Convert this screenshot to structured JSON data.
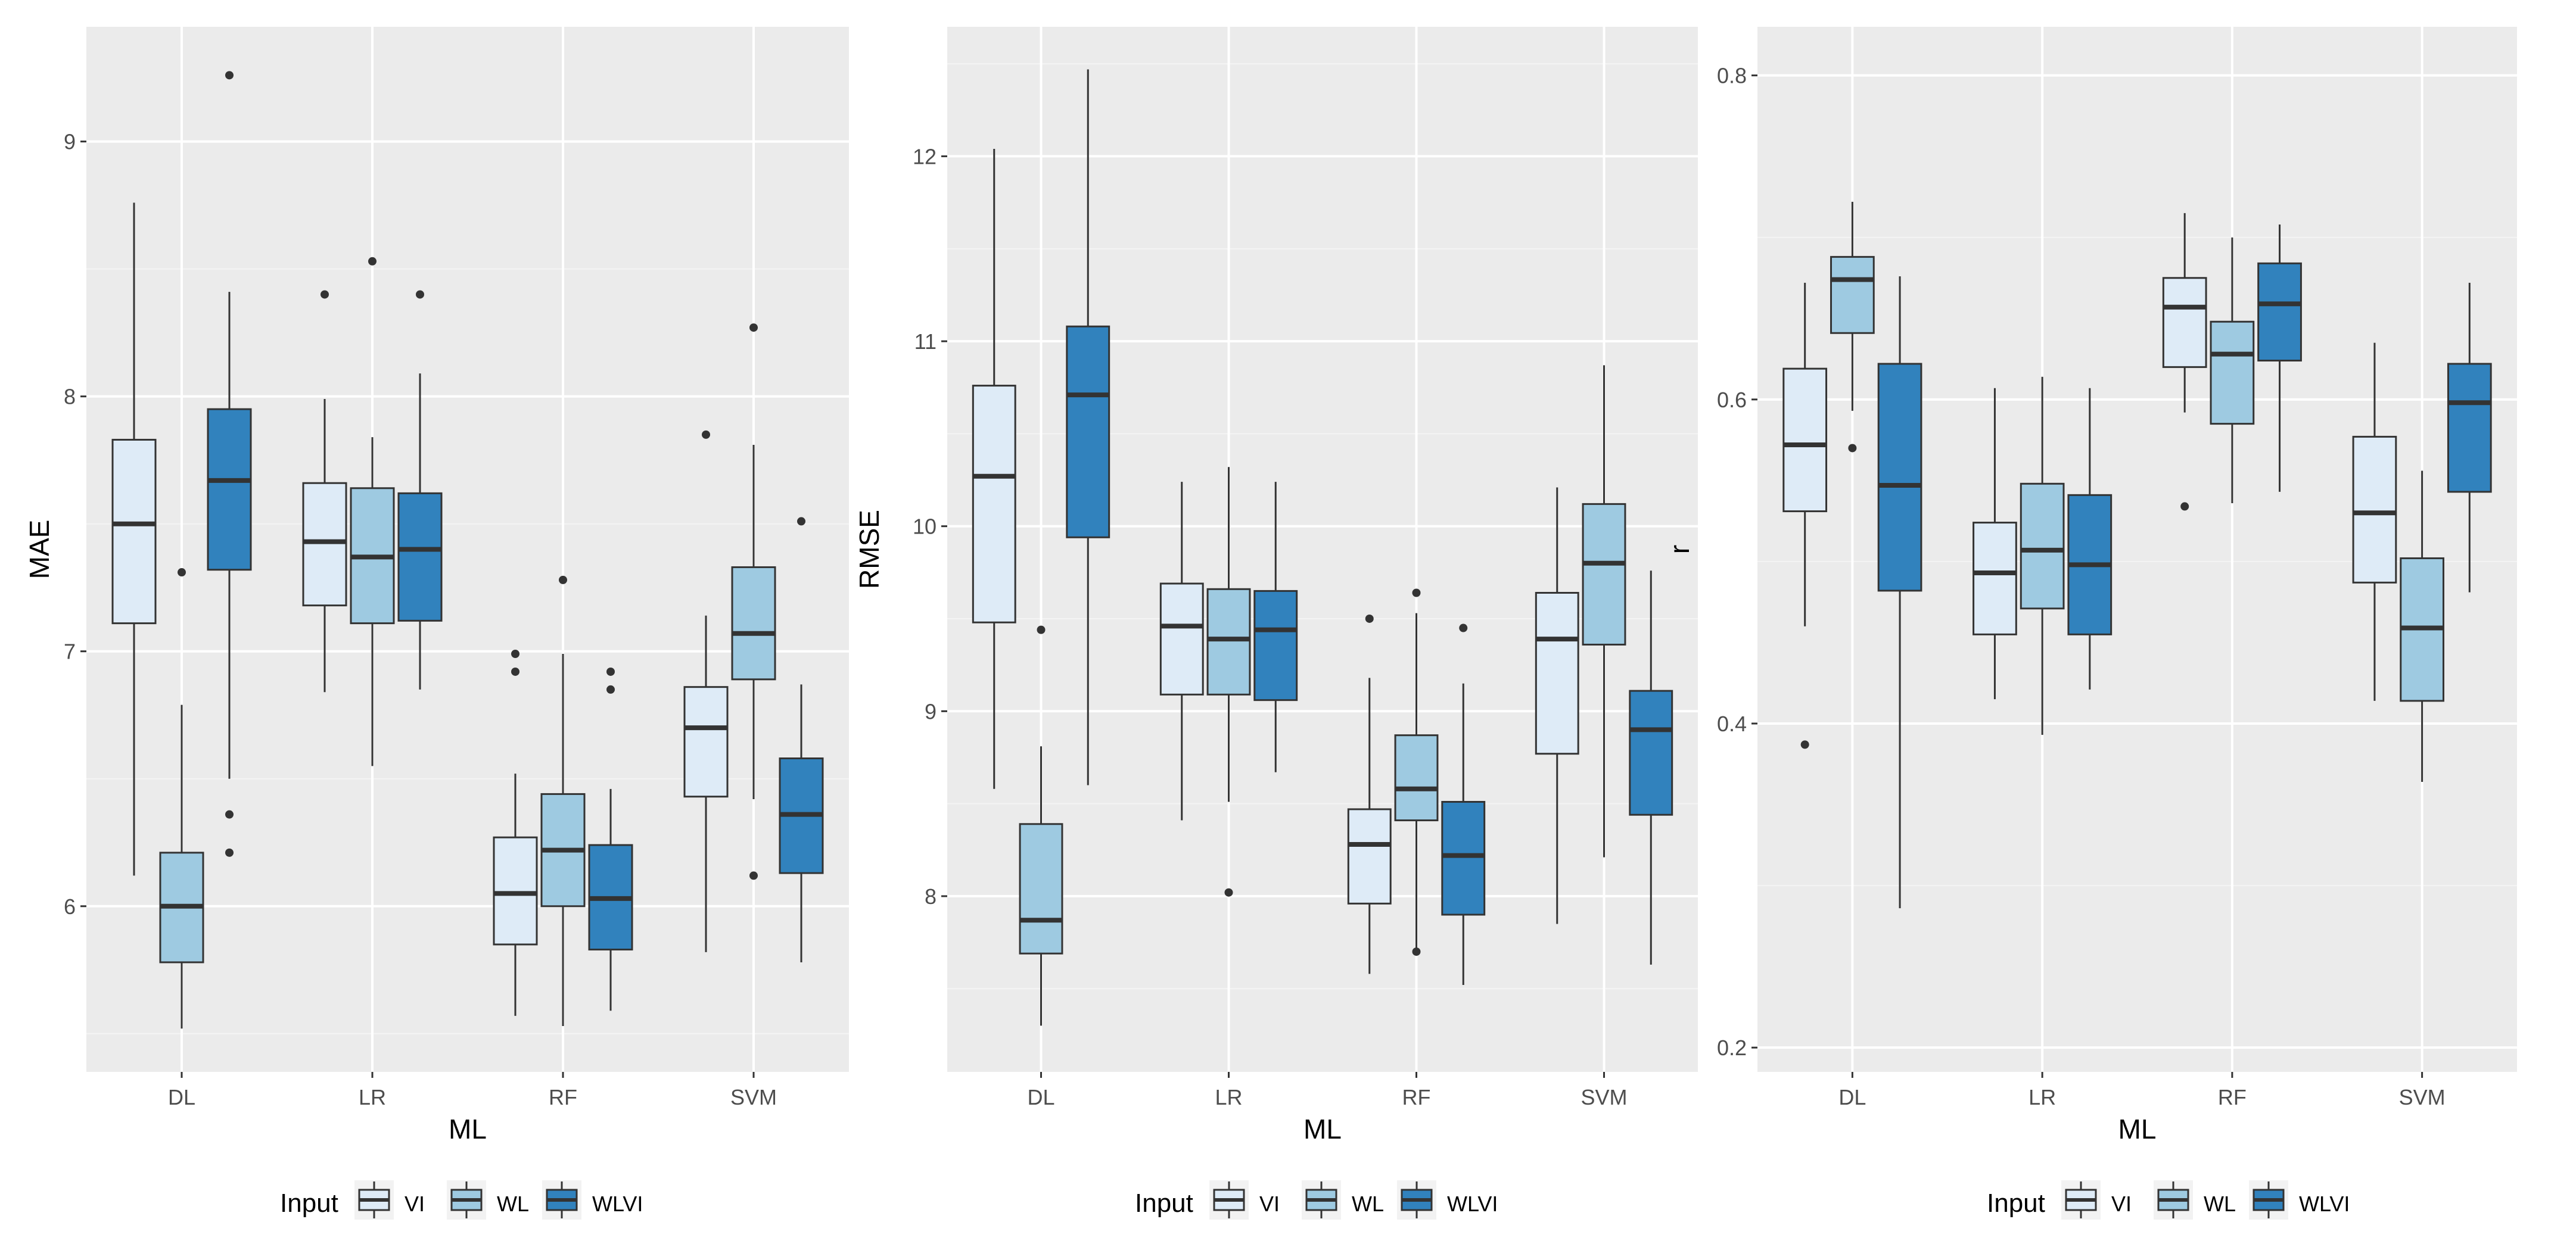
{
  "legend": {
    "title": "Input",
    "items": [
      {
        "label": "VI",
        "color": "#deebf7"
      },
      {
        "label": "WL",
        "color": "#9ecae1"
      },
      {
        "label": "WLVI",
        "color": "#3182bd"
      }
    ]
  },
  "chart_data": [
    {
      "type": "boxplot",
      "title": "",
      "xlabel": "ML",
      "ylabel": "MAE",
      "categories": [
        "DL",
        "LR",
        "RF",
        "SVM"
      ],
      "ylim": [
        5.35,
        9.45
      ],
      "yticks": [
        "6",
        "7",
        "8",
        "9"
      ],
      "grid": true,
      "legend_position": "bottom",
      "series": [
        {
          "name": "VI",
          "boxes": [
            {
              "whislo": 6.12,
              "q1": 7.11,
              "med": 7.5,
              "q3": 7.83,
              "whishi": 8.76,
              "fliers": []
            },
            {
              "whislo": 6.84,
              "q1": 7.18,
              "med": 7.43,
              "q3": 7.66,
              "whishi": 7.99,
              "fliers": [
                8.4
              ]
            },
            {
              "whislo": 5.57,
              "q1": 5.85,
              "med": 6.05,
              "q3": 6.27,
              "whishi": 6.52,
              "fliers": [
                6.92,
                6.99
              ]
            },
            {
              "whislo": 5.82,
              "q1": 6.43,
              "med": 6.7,
              "q3": 6.86,
              "whishi": 7.14,
              "fliers": [
                7.85
              ]
            }
          ]
        },
        {
          "name": "WL",
          "boxes": [
            {
              "whislo": 5.52,
              "q1": 5.78,
              "med": 6.0,
              "q3": 6.21,
              "whishi": 6.79,
              "fliers": [
                7.31
              ]
            },
            {
              "whislo": 6.55,
              "q1": 7.11,
              "med": 7.37,
              "q3": 7.64,
              "whishi": 7.84,
              "fliers": [
                8.53
              ]
            },
            {
              "whislo": 5.53,
              "q1": 6.0,
              "med": 6.22,
              "q3": 6.44,
              "whishi": 6.99,
              "fliers": [
                7.28
              ]
            },
            {
              "whislo": 6.42,
              "q1": 6.89,
              "med": 7.07,
              "q3": 7.33,
              "whishi": 7.81,
              "fliers": [
                8.27,
                6.12
              ]
            }
          ]
        },
        {
          "name": "WLVI",
          "boxes": [
            {
              "whislo": 6.5,
              "q1": 7.32,
              "med": 7.67,
              "q3": 7.95,
              "whishi": 8.41,
              "fliers": [
                9.26,
                6.36,
                6.21
              ]
            },
            {
              "whislo": 6.85,
              "q1": 7.12,
              "med": 7.4,
              "q3": 7.62,
              "whishi": 8.09,
              "fliers": [
                8.4
              ]
            },
            {
              "whislo": 5.59,
              "q1": 5.83,
              "med": 6.03,
              "q3": 6.24,
              "whishi": 6.46,
              "fliers": [
                6.85,
                6.92
              ]
            },
            {
              "whislo": 5.78,
              "q1": 6.13,
              "med": 6.36,
              "q3": 6.58,
              "whishi": 6.87,
              "fliers": [
                7.51
              ]
            }
          ]
        }
      ]
    },
    {
      "type": "boxplot",
      "title": "",
      "xlabel": "ML",
      "ylabel": "RMSE",
      "categories": [
        "DL",
        "LR",
        "RF",
        "SVM"
      ],
      "ylim": [
        7.05,
        12.7
      ],
      "yticks": [
        "8",
        "9",
        "10",
        "11",
        "12"
      ],
      "grid": true,
      "legend_position": "bottom",
      "series": [
        {
          "name": "VI",
          "boxes": [
            {
              "whislo": 8.58,
              "q1": 9.48,
              "med": 10.27,
              "q3": 10.76,
              "whishi": 12.04,
              "fliers": []
            },
            {
              "whislo": 8.41,
              "q1": 9.09,
              "med": 9.46,
              "q3": 9.69,
              "whishi": 10.24,
              "fliers": []
            },
            {
              "whislo": 7.58,
              "q1": 7.96,
              "med": 8.28,
              "q3": 8.47,
              "whishi": 9.18,
              "fliers": [
                9.5
              ]
            },
            {
              "whislo": 7.85,
              "q1": 8.77,
              "med": 9.39,
              "q3": 9.64,
              "whishi": 10.21,
              "fliers": []
            }
          ]
        },
        {
          "name": "WL",
          "boxes": [
            {
              "whislo": 7.3,
              "q1": 7.69,
              "med": 7.87,
              "q3": 8.39,
              "whishi": 8.81,
              "fliers": [
                9.44
              ]
            },
            {
              "whislo": 8.51,
              "q1": 9.09,
              "med": 9.39,
              "q3": 9.66,
              "whishi": 10.32,
              "fliers": [
                8.02
              ]
            },
            {
              "whislo": 7.71,
              "q1": 8.41,
              "med": 8.58,
              "q3": 8.87,
              "whishi": 9.53,
              "fliers": [
                9.64,
                7.7
              ]
            },
            {
              "whislo": 8.21,
              "q1": 9.36,
              "med": 9.8,
              "q3": 10.12,
              "whishi": 10.87,
              "fliers": []
            }
          ]
        },
        {
          "name": "WLVI",
          "boxes": [
            {
              "whislo": 8.6,
              "q1": 9.94,
              "med": 10.71,
              "q3": 11.08,
              "whishi": 12.47,
              "fliers": []
            },
            {
              "whislo": 8.67,
              "q1": 9.06,
              "med": 9.44,
              "q3": 9.65,
              "whishi": 10.24,
              "fliers": []
            },
            {
              "whislo": 7.52,
              "q1": 7.9,
              "med": 8.22,
              "q3": 8.51,
              "whishi": 9.15,
              "fliers": [
                9.45
              ]
            },
            {
              "whislo": 7.63,
              "q1": 8.44,
              "med": 8.9,
              "q3": 9.11,
              "whishi": 9.76,
              "fliers": []
            }
          ]
        }
      ]
    },
    {
      "type": "boxplot",
      "title": "",
      "xlabel": "ML",
      "ylabel": "r",
      "categories": [
        "DL",
        "LR",
        "RF",
        "SVM"
      ],
      "ylim": [
        0.185,
        0.83
      ],
      "yticks": [
        "0.2",
        "0.4",
        "0.6",
        "0.8"
      ],
      "grid": true,
      "legend_position": "bottom",
      "series": [
        {
          "name": "VI",
          "boxes": [
            {
              "whislo": 0.46,
              "q1": 0.531,
              "med": 0.572,
              "q3": 0.619,
              "whishi": 0.672,
              "fliers": [
                0.387
              ]
            },
            {
              "whislo": 0.415,
              "q1": 0.455,
              "med": 0.493,
              "q3": 0.524,
              "whishi": 0.607,
              "fliers": []
            },
            {
              "whislo": 0.592,
              "q1": 0.62,
              "med": 0.657,
              "q3": 0.675,
              "whishi": 0.715,
              "fliers": [
                0.534
              ]
            },
            {
              "whislo": 0.414,
              "q1": 0.487,
              "med": 0.53,
              "q3": 0.577,
              "whishi": 0.635,
              "fliers": []
            }
          ]
        },
        {
          "name": "WL",
          "boxes": [
            {
              "whislo": 0.593,
              "q1": 0.641,
              "med": 0.674,
              "q3": 0.688,
              "whishi": 0.722,
              "fliers": [
                0.57
              ]
            },
            {
              "whislo": 0.393,
              "q1": 0.471,
              "med": 0.507,
              "q3": 0.548,
              "whishi": 0.614,
              "fliers": []
            },
            {
              "whislo": 0.536,
              "q1": 0.585,
              "med": 0.628,
              "q3": 0.648,
              "whishi": 0.7,
              "fliers": []
            },
            {
              "whislo": 0.364,
              "q1": 0.414,
              "med": 0.459,
              "q3": 0.502,
              "whishi": 0.556,
              "fliers": []
            }
          ]
        },
        {
          "name": "WLVI",
          "boxes": [
            {
              "whislo": 0.286,
              "q1": 0.482,
              "med": 0.547,
              "q3": 0.622,
              "whishi": 0.676,
              "fliers": []
            },
            {
              "whislo": 0.421,
              "q1": 0.455,
              "med": 0.498,
              "q3": 0.541,
              "whishi": 0.607,
              "fliers": []
            },
            {
              "whislo": 0.543,
              "q1": 0.624,
              "med": 0.659,
              "q3": 0.684,
              "whishi": 0.708,
              "fliers": []
            },
            {
              "whislo": 0.481,
              "q1": 0.543,
              "med": 0.598,
              "q3": 0.622,
              "whishi": 0.672,
              "fliers": []
            }
          ]
        }
      ]
    }
  ]
}
